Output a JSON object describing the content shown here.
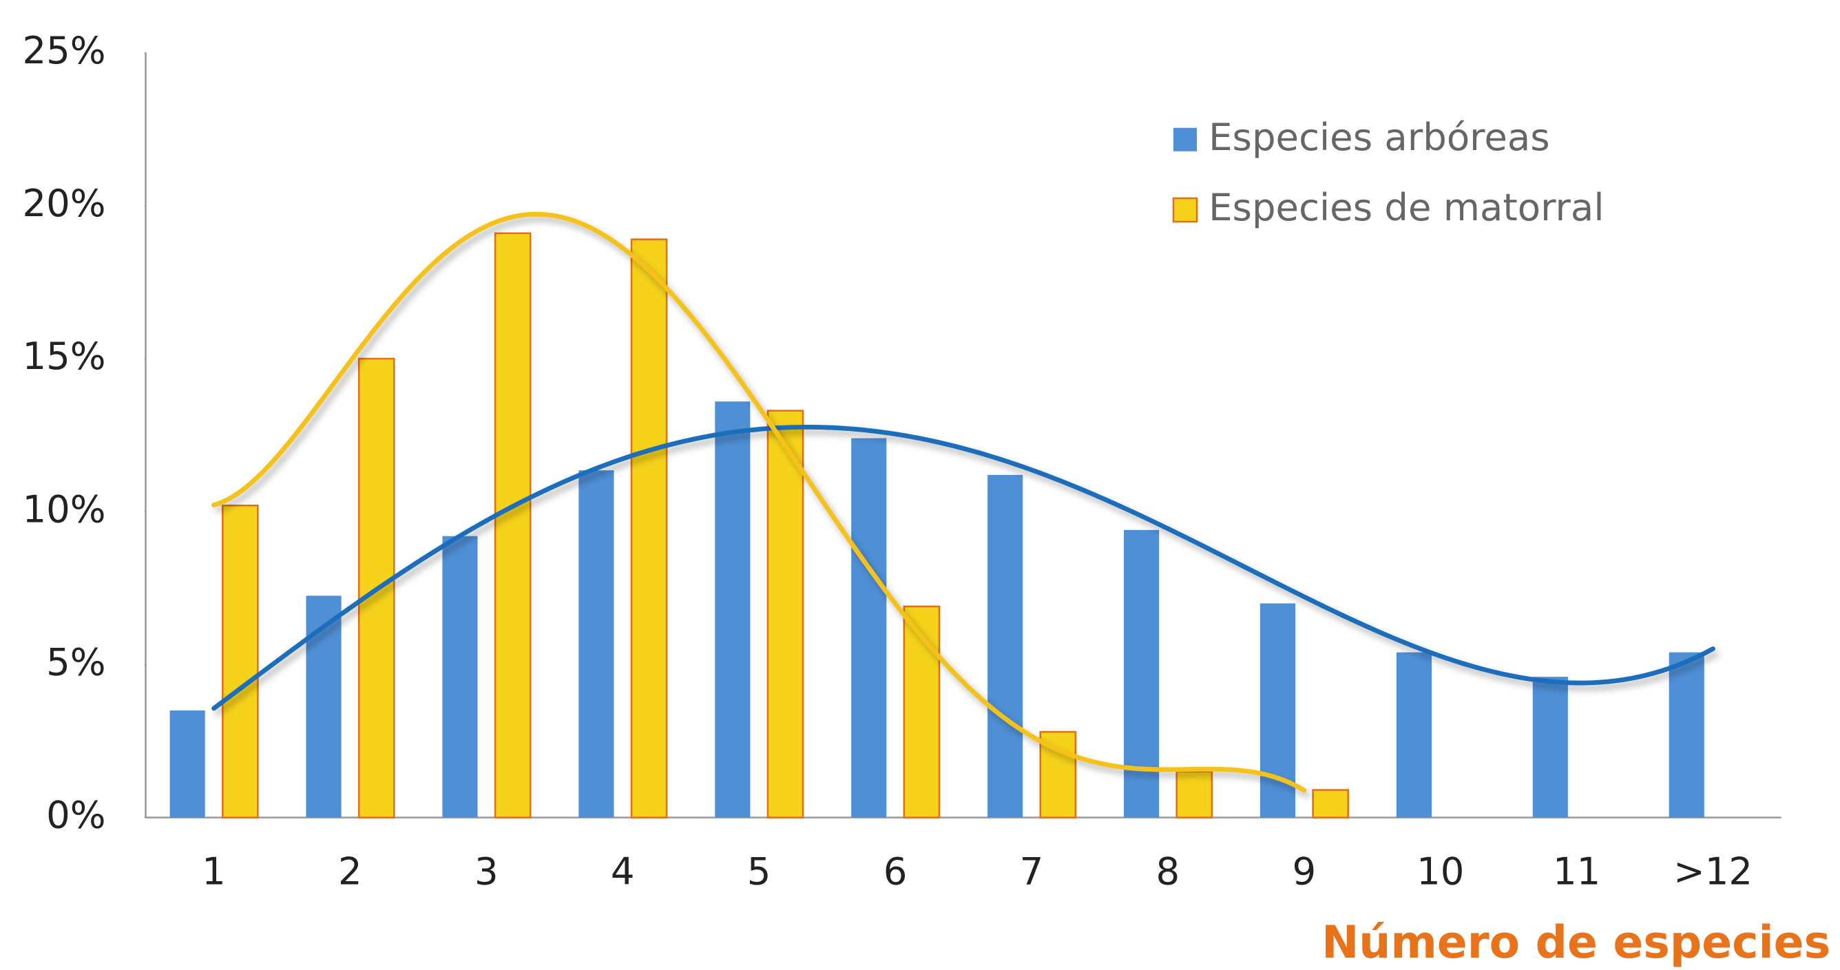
{
  "chart_data": {
    "type": "bar",
    "x_label": "Número de especies",
    "categories": [
      "1",
      "2",
      "3",
      "4",
      "5",
      "6",
      "7",
      "8",
      "9",
      "10",
      "11",
      ">12"
    ],
    "series": [
      {
        "name": "Especies arbóreas",
        "color": "#4f8fd6",
        "line_color": "#1f6dbb",
        "trendline": {
          "type": "polynomial",
          "order": 4
        },
        "values": [
          3.5,
          7.25,
          9.2,
          11.35,
          13.6,
          12.4,
          11.2,
          9.4,
          7.0,
          5.4,
          4.6,
          5.4
        ]
      },
      {
        "name": "Especies de matorral",
        "color": "#f6d21a",
        "edge_color": "#e0701e",
        "line_color": "#f5c21a",
        "trendline": {
          "type": "polynomial",
          "order": 6
        },
        "values": [
          10.2,
          15.0,
          19.1,
          18.9,
          13.3,
          6.9,
          2.8,
          1.5,
          0.9,
          null,
          null,
          null
        ]
      }
    ],
    "ylim": [
      0,
      25
    ],
    "yticks": [
      {
        "value": 0,
        "label": "0%"
      },
      {
        "value": 5,
        "label": "5%"
      },
      {
        "value": 10,
        "label": "10%"
      },
      {
        "value": 15,
        "label": "15%"
      },
      {
        "value": 20,
        "label": "20%"
      },
      {
        "value": 25,
        "label": "25%"
      }
    ],
    "grid": false,
    "legend": "top-right"
  }
}
